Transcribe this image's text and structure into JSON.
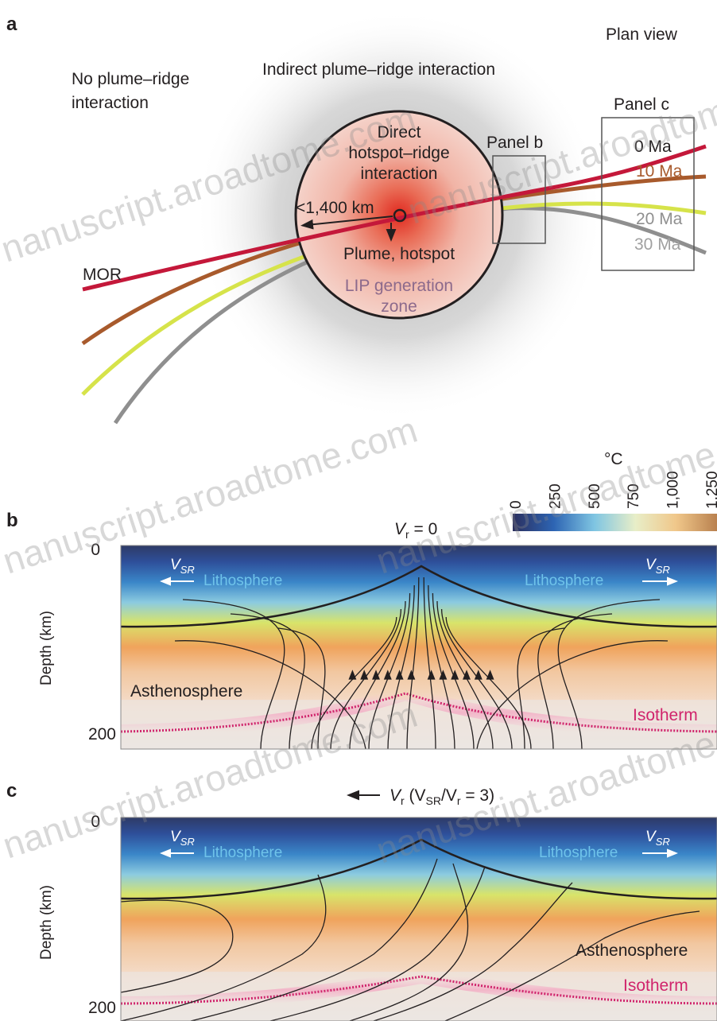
{
  "panels": {
    "a": {
      "letter": "a",
      "plan_view": "Plan view",
      "no_interaction": [
        "No plume–ridge",
        "interaction"
      ],
      "indirect": "Indirect plume–ridge interaction",
      "direct": [
        "Direct",
        "hotspot–ridge",
        "interaction"
      ],
      "distance": "<1,400 km",
      "plume": "Plume, hotspot",
      "lip": [
        "LIP generation",
        "zone"
      ],
      "mor": "MOR",
      "panel_b_box": "Panel b",
      "panel_c_box": "Panel c",
      "ages": [
        "0 Ma",
        "10 Ma",
        "20 Ma",
        "30 Ma"
      ]
    },
    "b": {
      "letter": "b",
      "velocity": "V",
      "velocity_sub": "r",
      "velocity_eq": " = 0",
      "depth_label": "Depth (km)",
      "tick_top": "0",
      "tick_bottom": "200",
      "vsr": "V",
      "vsr_sub": "SR",
      "lithosphere": "Lithosphere",
      "asthenosphere": "Asthenosphere",
      "isotherm": "Isotherm"
    },
    "c": {
      "letter": "c",
      "velocity_parts": [
        "V",
        "r",
        " (V",
        "SR",
        "/V",
        "r",
        " = 3)"
      ],
      "depth_label": "Depth (km)",
      "tick_top": "0",
      "tick_bottom": "200",
      "vsr": "V",
      "vsr_sub": "SR",
      "lithosphere": "Lithosphere",
      "asthenosphere": "Asthenosphere",
      "isotherm": "Isotherm"
    }
  },
  "colorbar": {
    "unit": "°C",
    "ticks": [
      "0",
      "250",
      "500",
      "750",
      "1,000",
      "1,250"
    ]
  },
  "watermark": "nanuscript.aroadtome.com",
  "colors": {
    "ridge_0": "#c4183a",
    "ridge_10": "#a85a2c",
    "ridge_20": "#d6e34a",
    "ridge_30": "#8f8f8f",
    "isotherm": "#d0246c",
    "lithosphere_label": "#6fc3ea"
  }
}
